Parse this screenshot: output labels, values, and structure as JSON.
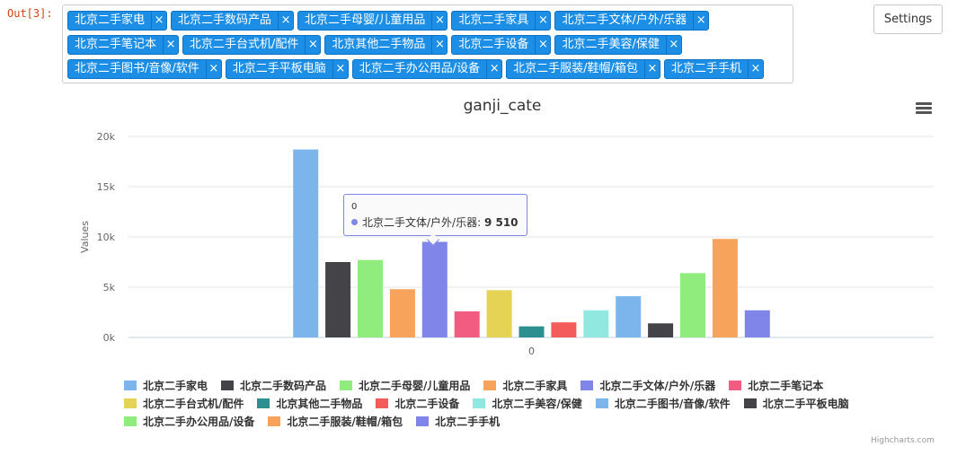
{
  "cell": {
    "prompt": "Out[3]:"
  },
  "multiselect": {
    "rows": [
      [
        "北京二手家电",
        "北京二手数码产品",
        "北京二手母婴/儿童用品",
        "北京二手家具",
        "北京二手文体/户外/乐器"
      ],
      [
        "北京二手笔记本",
        "北京二手台式机/配件",
        "北京其他二手物品",
        "北京二手设备",
        "北京二手美容/保健"
      ],
      [
        "北京二手图书/音像/软件",
        "北京二手平板电脑",
        "北京二手办公用品/设备",
        "北京二手服装/鞋帽/箱包",
        "北京二手手机"
      ]
    ],
    "remove_glyph": "×"
  },
  "settings_button": {
    "label": "Settings"
  },
  "tooltip": {
    "header": "0",
    "series_label": "北京二手文体/户外/乐器",
    "separator": ": ",
    "value_text": "9 510",
    "color": "#8085e9"
  },
  "credits": {
    "text": "Highcharts.com"
  },
  "chart_data": {
    "type": "bar",
    "title": "ganji_cate",
    "xlabel": "",
    "ylabel": "Values",
    "categories": [
      "0"
    ],
    "ylim": [
      0,
      20000
    ],
    "yticks": [
      0,
      5000,
      10000,
      15000,
      20000
    ],
    "ytick_labels": [
      "0k",
      "5k",
      "10k",
      "15k",
      "20k"
    ],
    "grid": true,
    "legend_position": "bottom",
    "series": [
      {
        "name": "北京二手家电",
        "values": [
          18700
        ],
        "color": "#7cb5ec"
      },
      {
        "name": "北京二手数码产品",
        "values": [
          7500
        ],
        "color": "#434348"
      },
      {
        "name": "北京二手母婴/儿童用品",
        "values": [
          7700
        ],
        "color": "#90ed7d"
      },
      {
        "name": "北京二手家具",
        "values": [
          4800
        ],
        "color": "#f7a35c"
      },
      {
        "name": "北京二手文体/户外/乐器",
        "values": [
          9510
        ],
        "color": "#8085e9"
      },
      {
        "name": "北京二手笔记本",
        "values": [
          2600
        ],
        "color": "#f15c80"
      },
      {
        "name": "北京二手台式机/配件",
        "values": [
          4700
        ],
        "color": "#e4d354"
      },
      {
        "name": "北京其他二手物品",
        "values": [
          1100
        ],
        "color": "#2b908f"
      },
      {
        "name": "北京二手设备",
        "values": [
          1500
        ],
        "color": "#f45b5b"
      },
      {
        "name": "北京二手美容/保健",
        "values": [
          2700
        ],
        "color": "#91e8e1"
      },
      {
        "name": "北京二手图书/音像/软件",
        "values": [
          4100
        ],
        "color": "#7cb5ec"
      },
      {
        "name": "北京二手平板电脑",
        "values": [
          1400
        ],
        "color": "#434348"
      },
      {
        "name": "北京二手办公用品/设备",
        "values": [
          6400
        ],
        "color": "#90ed7d"
      },
      {
        "name": "北京二手服装/鞋帽/箱包",
        "values": [
          9800
        ],
        "color": "#f7a35c"
      },
      {
        "name": "北京二手手机",
        "values": [
          2700
        ],
        "color": "#8085e9"
      }
    ],
    "legend_rows": [
      [
        0,
        1,
        2,
        3,
        4,
        5
      ],
      [
        6,
        7,
        8,
        9,
        10,
        11
      ],
      [
        12,
        13,
        14
      ]
    ]
  }
}
